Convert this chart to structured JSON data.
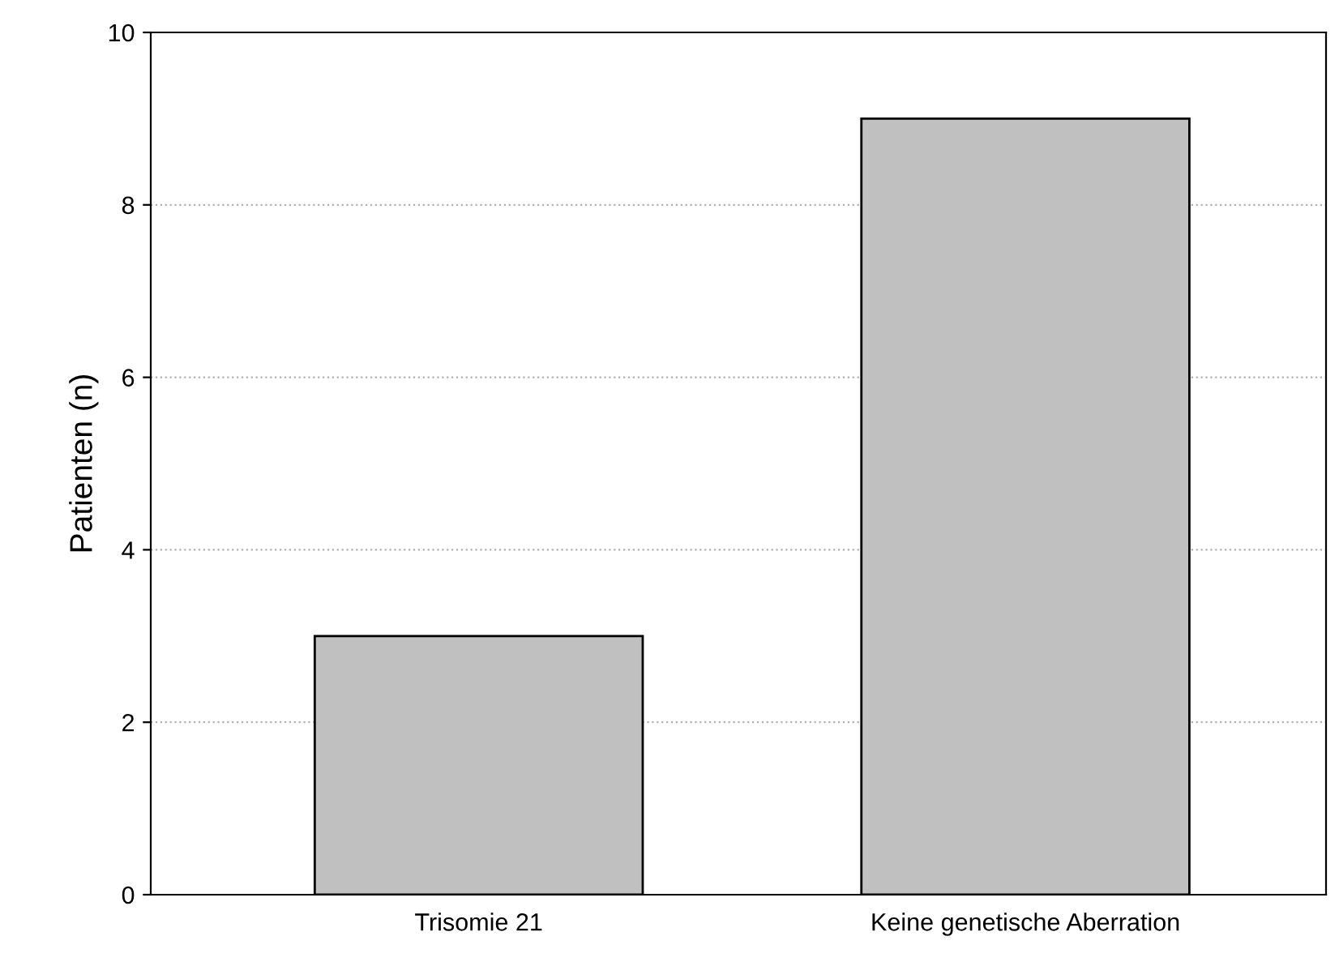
{
  "chart_data": {
    "type": "bar",
    "ylabel": "Patienten (n)",
    "categories": [
      "Trisomie 21",
      "Keine genetische Aberration"
    ],
    "values": [
      3,
      9
    ],
    "color": "#c0c0c0",
    "ylim": [
      0,
      10
    ],
    "yticks": [
      0,
      2,
      4,
      6,
      8,
      10
    ],
    "grid": "y"
  }
}
